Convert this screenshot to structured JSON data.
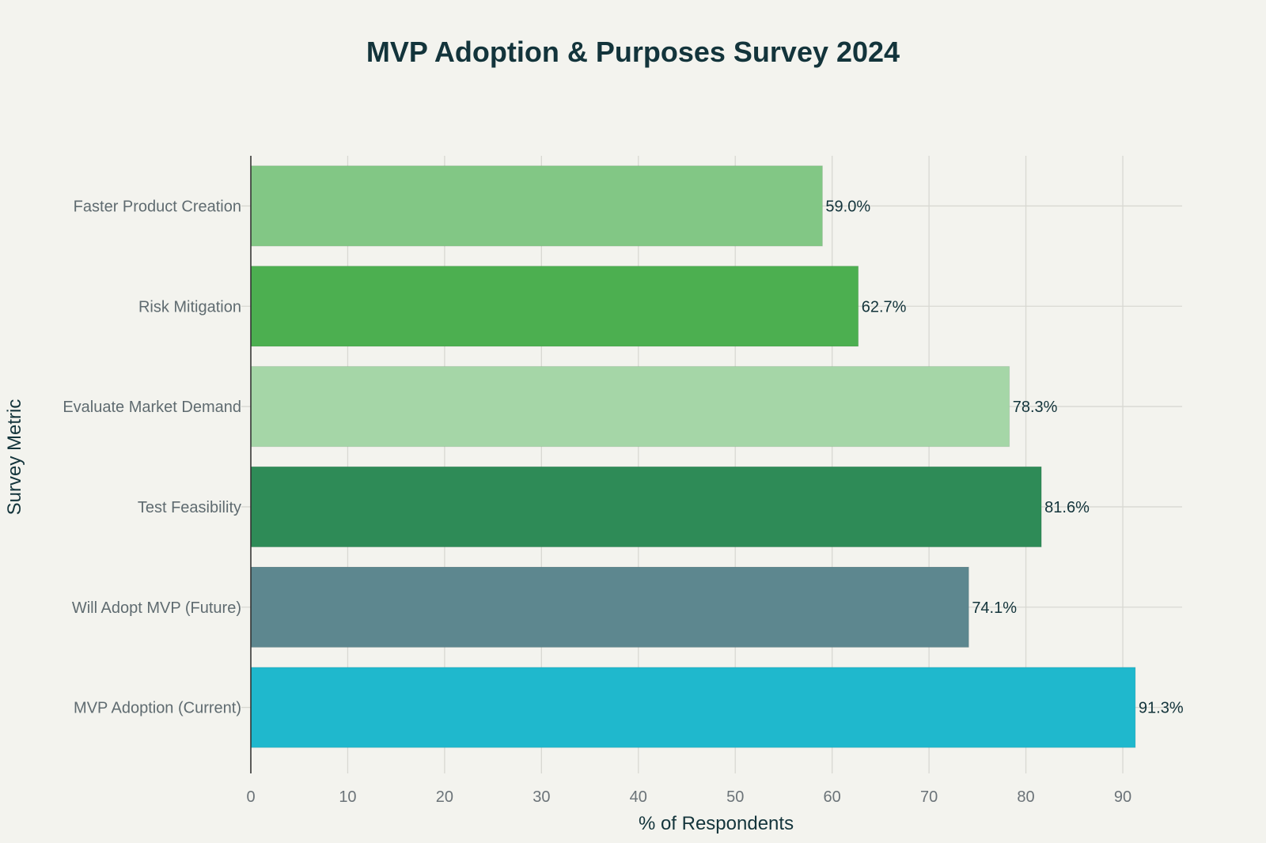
{
  "chart_data": {
    "type": "bar",
    "orientation": "horizontal",
    "title": "MVP Adoption & Purposes Survey 2024",
    "xlabel": "% of Respondents",
    "ylabel": "Survey Metric",
    "xlim": [
      0,
      96
    ],
    "xticks": [
      0,
      10,
      20,
      30,
      40,
      50,
      60,
      70,
      80,
      90
    ],
    "grid": true,
    "legend": "none",
    "categories": [
      "Faster Product Creation",
      "Risk Mitigation",
      "Evaluate Market Demand",
      "Test Feasibility",
      "Will Adopt MVP (Future)",
      "MVP Adoption (Current)"
    ],
    "values": [
      59.0,
      62.7,
      78.3,
      81.6,
      74.1,
      91.3
    ],
    "data_labels": [
      "59.0%",
      "62.7%",
      "78.3%",
      "81.6%",
      "74.1%",
      "91.3%"
    ],
    "colors": [
      "#82c785",
      "#4caf50",
      "#a5d6a7",
      "#2e8b57",
      "#5d878f",
      "#1fb8cd"
    ]
  }
}
